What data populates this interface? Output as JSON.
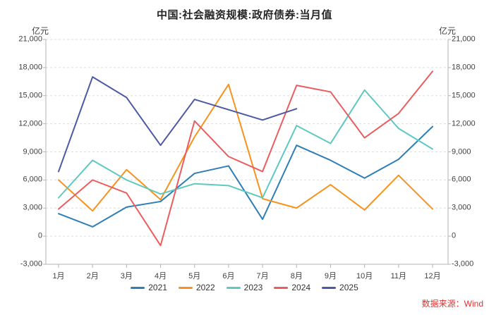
{
  "title": "中国:社会融资规模:政府债券:当月值",
  "axis_units": {
    "left": "亿元",
    "right": "亿元"
  },
  "source": {
    "text": "数据来源：Wind",
    "color": "#e03030"
  },
  "style": {
    "grid_color": "#dedede",
    "axis_color": "#b3b3b3",
    "tick_text_color": "#404040"
  },
  "chart_data": {
    "type": "line",
    "title": "中国:社会融资规模:政府债券:当月值",
    "categories": [
      "1月",
      "2月",
      "3月",
      "4月",
      "5月",
      "6月",
      "7月",
      "8月",
      "9月",
      "10月",
      "11月",
      "12月"
    ],
    "series": [
      {
        "name": "2021",
        "color": "#2f7eb5",
        "values": [
          2400,
          1000,
          3100,
          3700,
          6700,
          7500,
          1800,
          9700,
          8100,
          6200,
          8200,
          11700
        ]
      },
      {
        "name": "2022",
        "color": "#f6931e",
        "values": [
          6000,
          2700,
          7100,
          3900,
          10600,
          16200,
          4000,
          3000,
          5500,
          2800,
          6500,
          2900
        ]
      },
      {
        "name": "2023",
        "color": "#5ec8c1",
        "values": [
          4100,
          8100,
          6000,
          4500,
          5600,
          5400,
          4100,
          11800,
          9900,
          15600,
          11500,
          9300
        ]
      },
      {
        "name": "2024",
        "color": "#ea5d5f",
        "values": [
          2900,
          6000,
          4600,
          -1000,
          12300,
          8500,
          6900,
          16100,
          15400,
          10500,
          13100,
          17600
        ]
      },
      {
        "name": "2025",
        "color": "#4c59a4",
        "values": [
          6900,
          17000,
          14800,
          9700,
          14600,
          13500,
          12400,
          13600,
          null,
          null,
          null,
          null
        ]
      }
    ],
    "xlabel": "",
    "ylabel": "亿元",
    "ylim": [
      -3000,
      21000
    ],
    "ytick_step": 3000,
    "grid": "horizontal-dashed",
    "legend_position": "bottom"
  }
}
